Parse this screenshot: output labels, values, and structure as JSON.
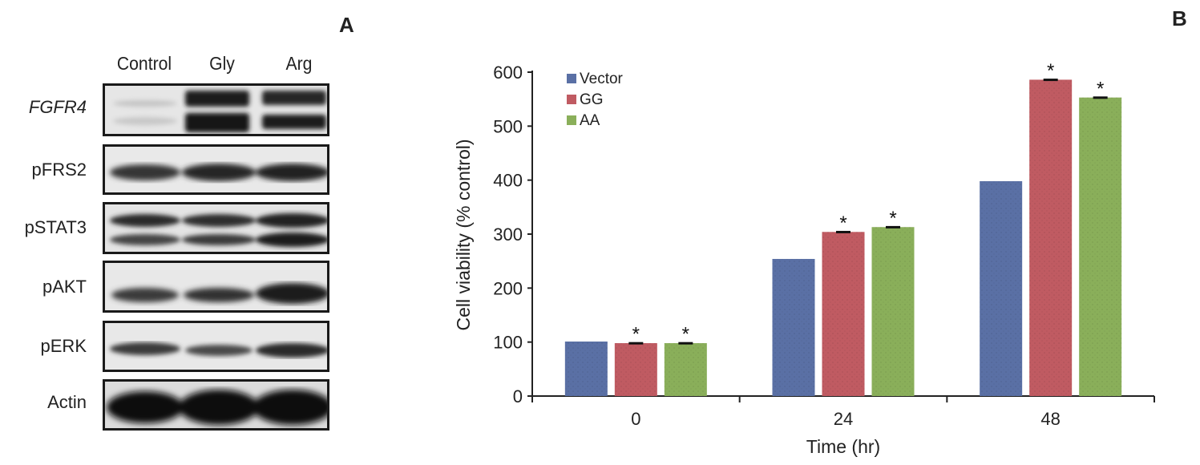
{
  "panels": {
    "a": "A",
    "b": "B"
  },
  "blot": {
    "lanes": [
      "Control",
      "Gly",
      "Arg"
    ],
    "rows": [
      {
        "label": "FGFR4",
        "italic": true
      },
      {
        "label": "pFRS2",
        "italic": false
      },
      {
        "label": "pSTAT3",
        "italic": false
      },
      {
        "label": "pAKT",
        "italic": false
      },
      {
        "label": "pERK",
        "italic": false
      },
      {
        "label": "Actin",
        "italic": false
      }
    ]
  },
  "chart_data": {
    "type": "bar",
    "title": "",
    "xlabel": "Time (hr)",
    "ylabel": "Cell viability (% control)",
    "categories": [
      "0",
      "24",
      "48"
    ],
    "ylim": [
      0,
      600
    ],
    "yticks": [
      "0",
      "100",
      "200",
      "300",
      "400",
      "500",
      "600"
    ],
    "legend_position": "top-left",
    "series": [
      {
        "name": "Vector",
        "color": "#5a70a5",
        "values": [
          101,
          254,
          398
        ],
        "errors": [
          0,
          0,
          0
        ],
        "significance": [
          "",
          "",
          ""
        ]
      },
      {
        "name": "GG",
        "color": "#c05b62",
        "values": [
          98,
          304,
          586
        ],
        "errors": [
          2,
          2,
          2
        ],
        "significance": [
          "*",
          "*",
          "*"
        ]
      },
      {
        "name": "AA",
        "color": "#8aaf5a",
        "values": [
          98,
          313,
          553
        ],
        "errors": [
          2,
          2,
          2
        ],
        "significance": [
          "*",
          "*",
          "*"
        ]
      }
    ]
  }
}
